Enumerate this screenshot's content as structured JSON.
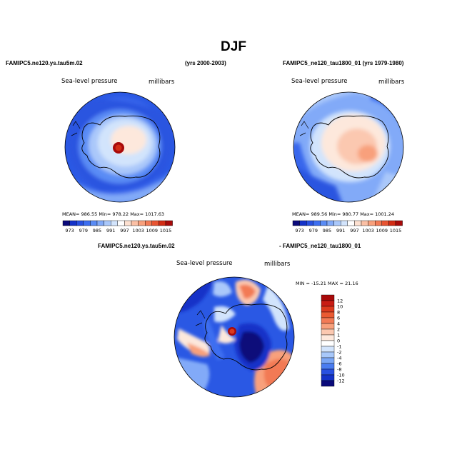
{
  "title": "DJF",
  "chart_data": [
    {
      "type": "heatmap",
      "name": "panel-left",
      "header_left": "FAMIPC5.ne120.ys.tau5m.02",
      "header_right": "(yrs 2000-2003)",
      "variable": "Sea-level pressure",
      "units": "millibars",
      "stats": "MEAN= 986.55  Min= 978.22  Max= 1017.63",
      "colorbar_labels": [
        "973",
        "979",
        "985",
        "991",
        "997",
        "1003",
        "1009",
        "1015"
      ],
      "colorbar_colors": [
        "#0a0a7a",
        "#1432c8",
        "#2850e0",
        "#3c6ef0",
        "#5a8cf5",
        "#82aaf8",
        "#aac8fa",
        "#d2e4fc",
        "#ffffff",
        "#fde0d0",
        "#fbc0a5",
        "#f8a07c",
        "#f27a55",
        "#e85432",
        "#d22c14",
        "#a80a0a"
      ]
    },
    {
      "type": "heatmap",
      "name": "panel-right",
      "header": "FAMIPC5_ne120_tau1800_01 (yrs 1979-1980)",
      "variable": "Sea-level pressure",
      "units": "millibars",
      "stats": "MEAN= 989.56  Min= 980.77  Max= 1001.24",
      "colorbar_labels": [
        "973",
        "979",
        "985",
        "991",
        "997",
        "1003",
        "1009",
        "1015"
      ],
      "colorbar_colors": [
        "#0a0a7a",
        "#1432c8",
        "#2850e0",
        "#3c6ef0",
        "#5a8cf5",
        "#82aaf8",
        "#aac8fa",
        "#d2e4fc",
        "#ffffff",
        "#fde0d0",
        "#fbc0a5",
        "#f8a07c",
        "#f27a55",
        "#e85432",
        "#d22c14",
        "#a80a0a"
      ]
    },
    {
      "type": "heatmap",
      "name": "panel-difference",
      "header_left": "FAMIPC5.ne120.ys.tau5m.02",
      "header_right": "- FAMIPC5_ne120_tau1800_01",
      "variable": "Sea-level pressure",
      "units": "millibars",
      "stats": "MIN = -15.21  MAX =  21.16",
      "colorbar_labels": [
        "12",
        "10",
        "8",
        "6",
        "4",
        "2",
        "1",
        "0",
        "-1",
        "-2",
        "-4",
        "-6",
        "-8",
        "-10",
        "-12"
      ],
      "colorbar_colors": [
        "#a80a0a",
        "#c81c14",
        "#dc3a1e",
        "#ea5a32",
        "#f27a55",
        "#f8a07c",
        "#fbc8b0",
        "#fde8dc",
        "#ffffff",
        "#d2e4fc",
        "#a8c8fa",
        "#7aa6f5",
        "#4a7cf0",
        "#2850e0",
        "#1432c8",
        "#0a0a7a"
      ]
    }
  ]
}
